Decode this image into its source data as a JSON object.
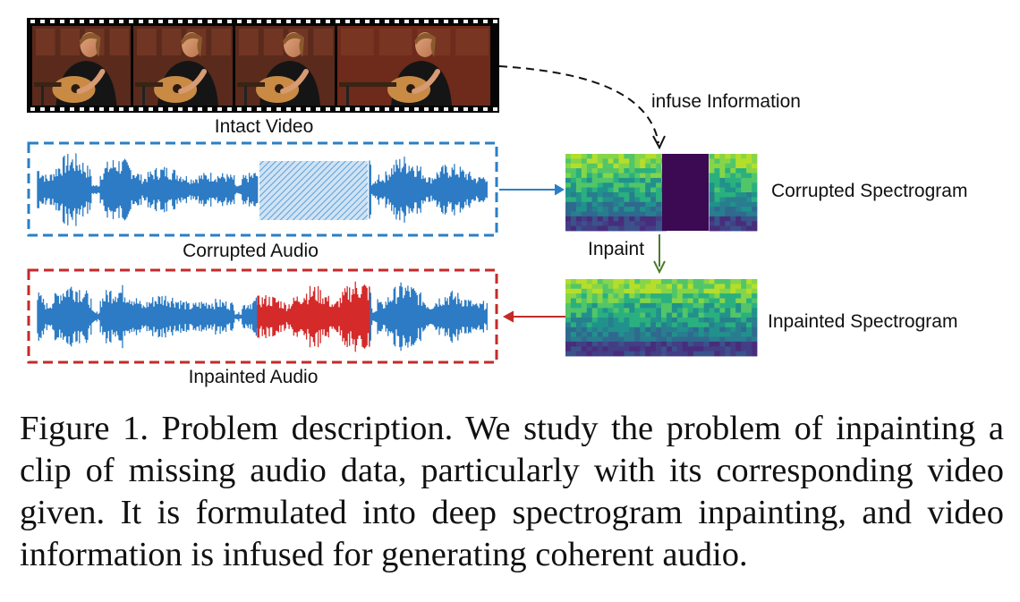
{
  "figure": {
    "labels": {
      "intact_video": "Intact Video",
      "corrupted_audio": "Corrupted Audio",
      "inpainted_audio": "Inpainted Audio",
      "infuse": "infuse Information",
      "corrupted_spectrogram": "Corrupted Spectrogram",
      "inpainted_spectrogram": "Inpainted Spectrogram",
      "inpaint": "Inpaint"
    },
    "colors": {
      "audio_wave": "#2c7bc4",
      "inpainted_wave": "#d42a2a",
      "corrupted_frame": "#2a7fc6",
      "inpainted_frame": "#c42a2a",
      "inpaint_arrow": "#4c7a2a",
      "spectrogram_missing": "#3b0a52"
    }
  },
  "caption": {
    "text": "Figure 1. Problem description. We study the problem of inpainting a clip of missing audio data, particularly with its corresponding video given. It is formulated into deep spectrogram inpainting, and video information is infused for generating coherent audio."
  }
}
